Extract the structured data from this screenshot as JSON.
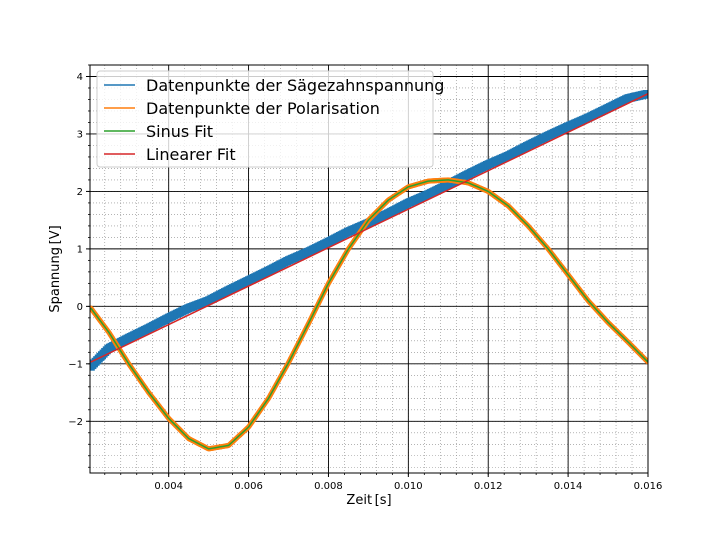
{
  "chart_data": {
    "type": "line",
    "title": "",
    "xlabel": "Zeit [s]",
    "ylabel": "Spannung [V]",
    "xlim": [
      0.00203,
      0.016
    ],
    "ylim": [
      -2.9,
      4.2
    ],
    "x_major_ticks": [
      0.004,
      0.006,
      0.008,
      0.01,
      0.012,
      0.014,
      0.016
    ],
    "x_tick_labels": [
      "0.004",
      "0.006",
      "0.008",
      "0.010",
      "0.012",
      "0.014",
      "0.016"
    ],
    "y_major_ticks": [
      -2,
      -1,
      0,
      1,
      2,
      3,
      4
    ],
    "y_tick_labels": [
      "−2",
      "−1",
      "0",
      "1",
      "2",
      "3",
      "4"
    ],
    "grid": {
      "major": true,
      "minor": true,
      "minor_style": "dotted"
    },
    "legend_position": "top-left",
    "colors": {
      "sawtooth": "#1f77b4",
      "polarisation": "#ff7f0e",
      "sine_fit": "#2ca02c",
      "linear_fit": "#d62728"
    },
    "series": [
      {
        "name": "Datenpunkte der Sägezahnspannung",
        "kind": "data-points",
        "marker": "square",
        "x": [
          0.00205,
          0.0025,
          0.003,
          0.0035,
          0.004,
          0.0045,
          0.005,
          0.0055,
          0.006,
          0.0065,
          0.007,
          0.0075,
          0.008,
          0.0085,
          0.009,
          0.0095,
          0.01,
          0.0105,
          0.011,
          0.0115,
          0.012,
          0.0125,
          0.013,
          0.0135,
          0.014,
          0.0145,
          0.015,
          0.0155,
          0.016
        ],
        "y": [
          -1.05,
          -0.73,
          -0.55,
          -0.38,
          -0.2,
          -0.03,
          0.1,
          0.28,
          0.45,
          0.62,
          0.8,
          0.95,
          1.12,
          1.3,
          1.45,
          1.62,
          1.8,
          1.95,
          2.12,
          2.3,
          2.47,
          2.62,
          2.8,
          2.97,
          3.13,
          3.28,
          3.45,
          3.62,
          3.7
        ]
      },
      {
        "name": "Datenpunkte der Polarisation",
        "kind": "data-points",
        "marker": "dot",
        "x": [
          0.00205,
          0.0025,
          0.003,
          0.0035,
          0.004,
          0.0045,
          0.005,
          0.0055,
          0.006,
          0.0065,
          0.007,
          0.0075,
          0.008,
          0.0085,
          0.009,
          0.0095,
          0.01,
          0.0105,
          0.011,
          0.0115,
          0.012,
          0.0125,
          0.013,
          0.0135,
          0.014,
          0.0145,
          0.015,
          0.0155,
          0.016
        ],
        "y": [
          -0.03,
          -0.45,
          -1.0,
          -1.5,
          -1.95,
          -2.3,
          -2.48,
          -2.42,
          -2.1,
          -1.6,
          -0.98,
          -0.3,
          0.4,
          1.0,
          1.5,
          1.85,
          2.08,
          2.18,
          2.2,
          2.15,
          2.0,
          1.75,
          1.4,
          1.0,
          0.55,
          0.1,
          -0.28,
          -0.62,
          -0.97
        ]
      },
      {
        "name": "Sinus Fit",
        "kind": "fit-line",
        "x": [
          0.00205,
          0.0025,
          0.003,
          0.0035,
          0.004,
          0.0045,
          0.005,
          0.0055,
          0.006,
          0.0065,
          0.007,
          0.0075,
          0.008,
          0.0085,
          0.009,
          0.0095,
          0.01,
          0.0105,
          0.011,
          0.0115,
          0.012,
          0.0125,
          0.013,
          0.0135,
          0.014,
          0.0145,
          0.015,
          0.0155,
          0.016
        ],
        "y": [
          -0.03,
          -0.45,
          -1.0,
          -1.5,
          -1.95,
          -2.3,
          -2.48,
          -2.42,
          -2.1,
          -1.6,
          -0.98,
          -0.3,
          0.4,
          1.0,
          1.5,
          1.85,
          2.08,
          2.18,
          2.2,
          2.15,
          2.0,
          1.75,
          1.4,
          1.0,
          0.55,
          0.1,
          -0.28,
          -0.62,
          -0.97
        ]
      },
      {
        "name": "Linearer Fit",
        "kind": "fit-line",
        "x": [
          0.00205,
          0.016
        ],
        "y": [
          -0.97,
          3.7
        ]
      }
    ]
  }
}
